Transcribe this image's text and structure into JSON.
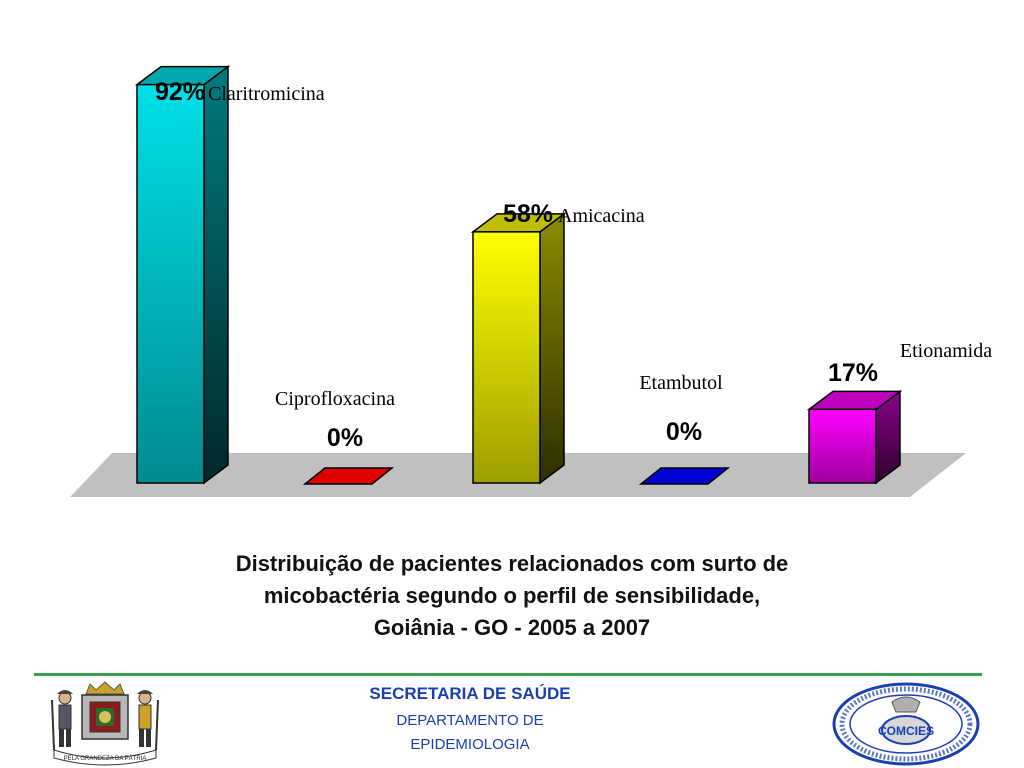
{
  "chart_data": {
    "type": "bar",
    "categories": [
      "Claritromicina",
      "Ciprofloxacina",
      "Amicacina",
      "Etambutol",
      "Etionamida"
    ],
    "values": [
      92,
      0,
      58,
      0,
      17
    ],
    "value_labels": [
      "92%",
      "0%",
      "58%",
      "0%",
      "17%"
    ],
    "colors": [
      "#00e0e8",
      "#e00000",
      "#ffff00",
      "#0000d0",
      "#ff00ff"
    ],
    "ylim": [
      0,
      100
    ],
    "grid": false,
    "style": "3d"
  },
  "caption": {
    "line1": "Distribuição de pacientes relacionados com surto de",
    "line2": "micobactéria segundo o perfil de sensibilidade,",
    "line3": "Goiânia - GO - 2005 a 2007"
  },
  "footer": {
    "title": "SECRETARIA DE SAÚDE",
    "dept_line1": "DEPARTAMENTO DE",
    "dept_line2": "EPIDEMIOLOGIA"
  },
  "logos": {
    "left": {
      "motto": "PELA GRANDEZA DA PÁTRIA"
    },
    "right": {
      "center_text": "COMCIES"
    }
  }
}
